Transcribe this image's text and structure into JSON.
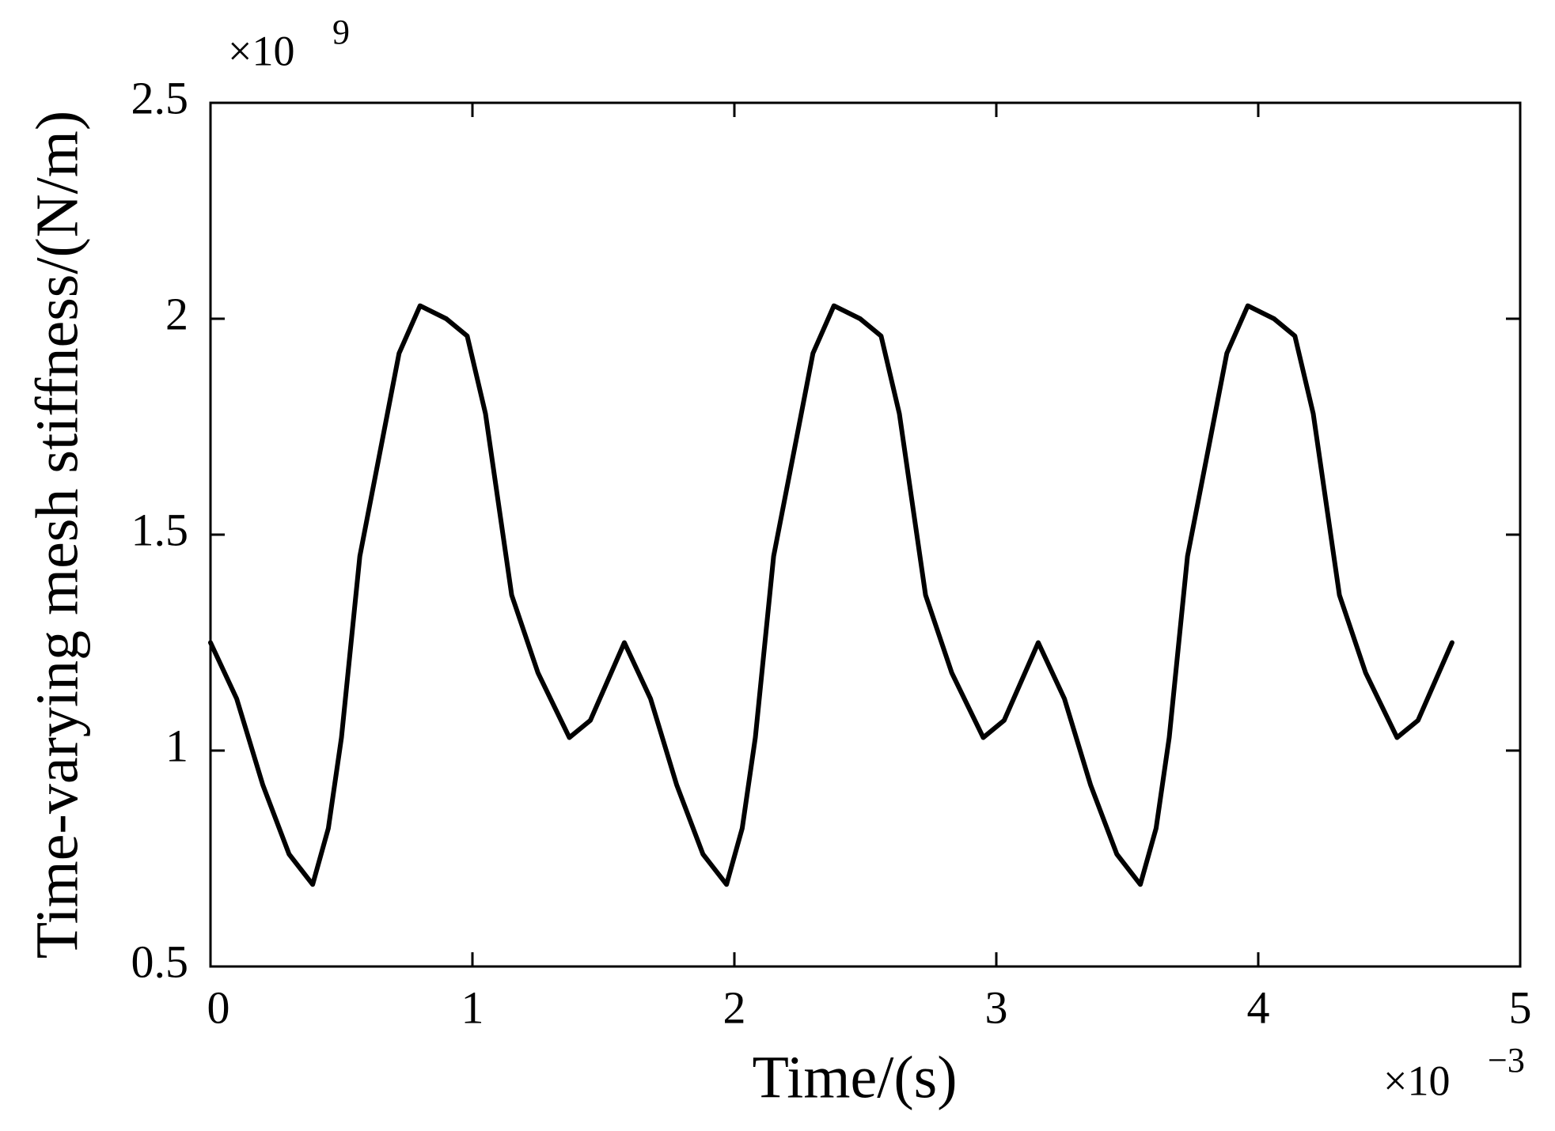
{
  "chart_data": {
    "type": "line",
    "xlabel": "Time/(s)",
    "ylabel": "Time-varying mesh stiffness/(N/m)",
    "x_multiplier": "×10",
    "x_exponent": "−3",
    "y_multiplier": "×10",
    "y_exponent": "9",
    "xlim": [
      0,
      5
    ],
    "xticks": [
      0,
      1,
      2,
      3,
      4,
      5
    ],
    "ylim": [
      0.5,
      2.5
    ],
    "yticks": [
      0.5,
      1,
      1.5,
      2,
      2.5
    ],
    "grid": false,
    "series": [
      {
        "color": "#000000",
        "x": [
          0,
          0.1,
          0.2,
          0.3,
          0.39,
          0.45,
          0.5,
          0.57,
          0.65,
          0.72,
          0.8,
          0.9,
          0.98,
          1.05,
          1.15,
          1.25,
          1.37,
          1.45,
          1.58,
          1.68,
          1.78,
          1.88,
          1.97,
          2.03,
          2.08,
          2.15,
          2.23,
          2.3,
          2.38,
          2.48,
          2.56,
          2.63,
          2.73,
          2.83,
          2.95,
          3.03,
          3.16,
          3.26,
          3.36,
          3.46,
          3.55,
          3.61,
          3.66,
          3.73,
          3.81,
          3.88,
          3.96,
          4.06,
          4.14,
          4.21,
          4.31,
          4.41,
          4.53,
          4.61,
          4.74
        ],
        "values": [
          1.25,
          1.12,
          0.92,
          0.76,
          0.69,
          0.82,
          1.03,
          1.45,
          1.7,
          1.92,
          2.03,
          2.0,
          1.96,
          1.78,
          1.36,
          1.18,
          1.03,
          1.07,
          1.25,
          1.12,
          0.92,
          0.76,
          0.69,
          0.82,
          1.03,
          1.45,
          1.7,
          1.92,
          2.03,
          2.0,
          1.96,
          1.78,
          1.36,
          1.18,
          1.03,
          1.07,
          1.25,
          1.12,
          0.92,
          0.76,
          0.69,
          0.82,
          1.03,
          1.45,
          1.7,
          1.92,
          2.03,
          2.0,
          1.96,
          1.78,
          1.36,
          1.18,
          1.03,
          1.07,
          1.25
        ]
      }
    ]
  }
}
